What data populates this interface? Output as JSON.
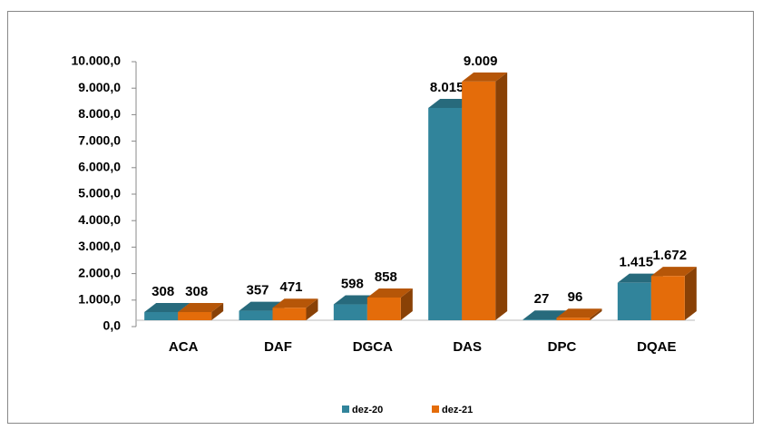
{
  "chart_data": {
    "type": "bar3d",
    "categories": [
      "ACA",
      "DAF",
      "DGCA",
      "DAS",
      "DPC",
      "DQAE"
    ],
    "series": [
      {
        "name": "dez-20",
        "color": "#31849b",
        "values": [
          308,
          357,
          598,
          8015,
          27,
          1415
        ],
        "value_labels": [
          "308",
          "357",
          "598",
          "8.015",
          "27",
          "1.415"
        ]
      },
      {
        "name": "dez-21",
        "color": "#e46c0a",
        "values": [
          308,
          471,
          858,
          9009,
          96,
          1672
        ],
        "value_labels": [
          "308",
          "471",
          "858",
          "9.009",
          "96",
          "1.672"
        ]
      }
    ],
    "ylim": [
      0,
      10000
    ],
    "yticks": [
      {
        "value": 0,
        "label": "0,0"
      },
      {
        "value": 1000,
        "label": "1.000,0"
      },
      {
        "value": 2000,
        "label": "2.000,0"
      },
      {
        "value": 3000,
        "label": "3.000,0"
      },
      {
        "value": 4000,
        "label": "4.000,0"
      },
      {
        "value": 5000,
        "label": "5.000,0"
      },
      {
        "value": 6000,
        "label": "6.000,0"
      },
      {
        "value": 7000,
        "label": "7.000,0"
      },
      {
        "value": 8000,
        "label": "8.000,0"
      },
      {
        "value": 9000,
        "label": "9.000,0"
      },
      {
        "value": 10000,
        "label": "10.000,0"
      }
    ],
    "legend": "bottom"
  }
}
